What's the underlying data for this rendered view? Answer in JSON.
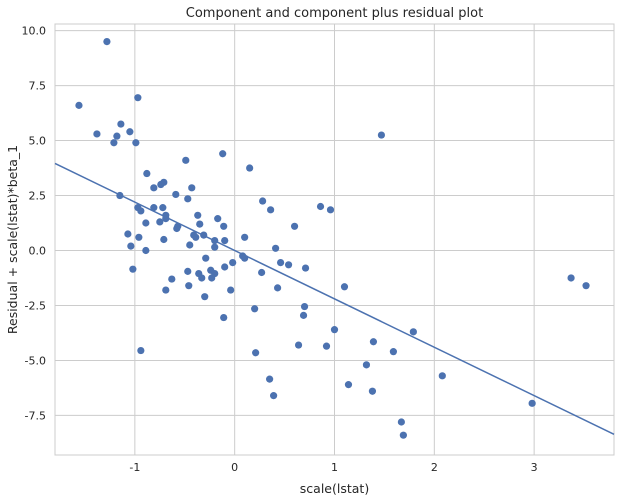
{
  "chart_data": {
    "type": "scatter",
    "title": "Component and component plus residual plot",
    "xlabel": "scale(lstat)",
    "ylabel": "Residual + scale(lstat)*beta_1",
    "xlim": [
      -1.8,
      3.8
    ],
    "ylim": [
      -9.3,
      10.3
    ],
    "xticks": [
      -1,
      0,
      1,
      2,
      3
    ],
    "xtick_labels": [
      "-1",
      "0",
      "1",
      "2",
      "3"
    ],
    "yticks": [
      -7.5,
      -5.0,
      -2.5,
      0.0,
      2.5,
      5.0,
      7.5,
      10.0
    ],
    "ytick_labels": [
      "-7.5",
      "-5.0",
      "-2.5",
      "0.0",
      "2.5",
      "5.0",
      "7.5",
      "10.0"
    ],
    "grid": true,
    "fit_line": {
      "slope": -2.2,
      "intercept": 0.0
    },
    "points": [
      [
        -1.28,
        9.5
      ],
      [
        -1.56,
        6.6
      ],
      [
        -0.97,
        6.95
      ],
      [
        -1.38,
        5.3
      ],
      [
        -1.14,
        5.75
      ],
      [
        -1.05,
        5.4
      ],
      [
        -1.18,
        5.2
      ],
      [
        -1.21,
        4.9
      ],
      [
        -0.99,
        4.9
      ],
      [
        -0.49,
        4.1
      ],
      [
        -0.12,
        4.4
      ],
      [
        0.15,
        3.75
      ],
      [
        1.47,
        5.25
      ],
      [
        -0.88,
        3.5
      ],
      [
        -0.71,
        3.1
      ],
      [
        -0.74,
        3.0
      ],
      [
        -0.81,
        2.85
      ],
      [
        -0.43,
        2.85
      ],
      [
        -0.59,
        2.55
      ],
      [
        -0.47,
        2.35
      ],
      [
        -1.15,
        2.5
      ],
      [
        -0.97,
        1.95
      ],
      [
        -0.81,
        1.95
      ],
      [
        -0.72,
        1.95
      ],
      [
        -0.94,
        1.8
      ],
      [
        -0.69,
        1.6
      ],
      [
        -0.69,
        1.45
      ],
      [
        -0.37,
        1.6
      ],
      [
        -0.17,
        1.45
      ],
      [
        -0.75,
        1.3
      ],
      [
        -0.89,
        1.25
      ],
      [
        -0.35,
        1.2
      ],
      [
        -0.11,
        1.1
      ],
      [
        -0.58,
        1.0
      ],
      [
        -0.57,
        1.1
      ],
      [
        -0.41,
        0.7
      ],
      [
        -0.39,
        0.6
      ],
      [
        -0.31,
        0.7
      ],
      [
        -0.1,
        0.45
      ],
      [
        -0.2,
        0.45
      ],
      [
        -1.07,
        0.75
      ],
      [
        -0.96,
        0.6
      ],
      [
        -0.71,
        0.5
      ],
      [
        -0.45,
        0.25
      ],
      [
        -0.2,
        0.15
      ],
      [
        -1.04,
        0.2
      ],
      [
        -0.89,
        0.0
      ],
      [
        0.1,
        0.6
      ],
      [
        0.28,
        2.25
      ],
      [
        0.36,
        1.85
      ],
      [
        0.6,
        1.1
      ],
      [
        0.86,
        2.0
      ],
      [
        0.96,
        1.85
      ],
      [
        0.41,
        0.1
      ],
      [
        0.08,
        -0.25
      ],
      [
        0.1,
        -0.35
      ],
      [
        -0.29,
        -0.35
      ],
      [
        0.46,
        -0.55
      ],
      [
        0.54,
        -0.65
      ],
      [
        0.71,
        -0.8
      ],
      [
        -0.02,
        -0.55
      ],
      [
        -0.1,
        -0.75
      ],
      [
        -1.02,
        -0.85
      ],
      [
        -0.47,
        -0.95
      ],
      [
        -0.36,
        -1.05
      ],
      [
        -0.24,
        -0.9
      ],
      [
        -0.2,
        -1.05
      ],
      [
        -0.33,
        -1.25
      ],
      [
        -0.23,
        -1.25
      ],
      [
        -0.63,
        -1.3
      ],
      [
        0.27,
        -1.0
      ],
      [
        -0.69,
        -1.8
      ],
      [
        -0.46,
        -1.6
      ],
      [
        -0.04,
        -1.8
      ],
      [
        -0.3,
        -2.1
      ],
      [
        0.43,
        -1.7
      ],
      [
        1.1,
        -1.65
      ],
      [
        0.7,
        -2.55
      ],
      [
        0.69,
        -2.95
      ],
      [
        0.2,
        -2.65
      ],
      [
        -0.11,
        -3.05
      ],
      [
        1.0,
        -3.6
      ],
      [
        1.79,
        -3.7
      ],
      [
        0.92,
        -4.35
      ],
      [
        0.64,
        -4.3
      ],
      [
        1.39,
        -4.15
      ],
      [
        1.59,
        -4.6
      ],
      [
        0.21,
        -4.65
      ],
      [
        -0.94,
        -4.55
      ],
      [
        1.32,
        -5.2
      ],
      [
        2.08,
        -5.7
      ],
      [
        1.14,
        -6.1
      ],
      [
        0.35,
        -5.85
      ],
      [
        1.38,
        -6.4
      ],
      [
        0.39,
        -6.6
      ],
      [
        2.98,
        -6.95
      ],
      [
        1.67,
        -7.8
      ],
      [
        1.69,
        -8.4
      ],
      [
        3.37,
        -1.25
      ],
      [
        3.52,
        -1.6
      ]
    ]
  }
}
